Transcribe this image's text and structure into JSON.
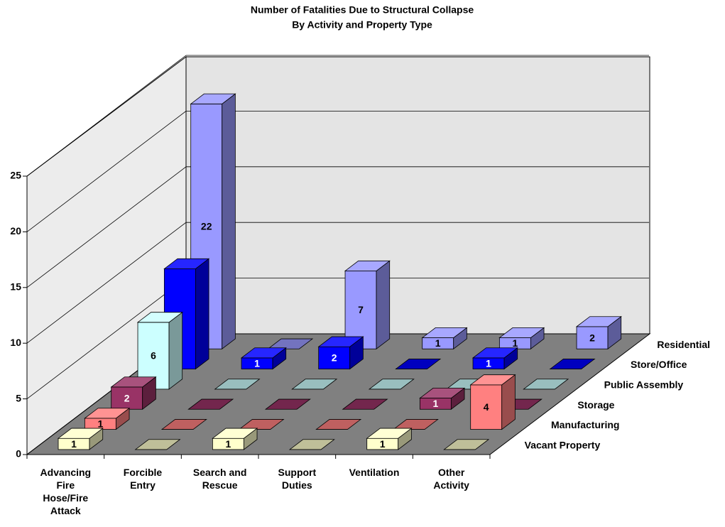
{
  "chart_data": {
    "type": "bar3d",
    "title": "Number of Fatalities Due to Structural Collapse",
    "subtitle": "By Activity and Property Type",
    "categories": [
      "Advancing Fire Hose/Fire Attack",
      "Forcible Entry",
      "Search and Rescue",
      "Support Duties",
      "Ventilation",
      "Other Activity"
    ],
    "series": [
      {
        "name": "Vacant Property",
        "color": "#ffffcc",
        "values": [
          1,
          0,
          1,
          0,
          1,
          0
        ]
      },
      {
        "name": "Manufacturing",
        "color": "#ff8080",
        "values": [
          1,
          0,
          0,
          0,
          0,
          4
        ]
      },
      {
        "name": "Storage",
        "color": "#993366",
        "values": [
          2,
          0,
          0,
          0,
          1,
          0
        ]
      },
      {
        "name": "Public Assembly",
        "color": "#ccffff",
        "values": [
          6,
          0,
          0,
          0,
          0,
          0
        ]
      },
      {
        "name": "Store/Office",
        "color": "#0000ff",
        "values": [
          9,
          1,
          2,
          0,
          1,
          0
        ]
      },
      {
        "name": "Residential",
        "color": "#9999ff",
        "values": [
          22,
          0,
          7,
          1,
          1,
          2
        ]
      }
    ],
    "ylim": [
      0,
      25
    ],
    "yticks": [
      0,
      5,
      10,
      15,
      20,
      25
    ],
    "grid": true
  }
}
